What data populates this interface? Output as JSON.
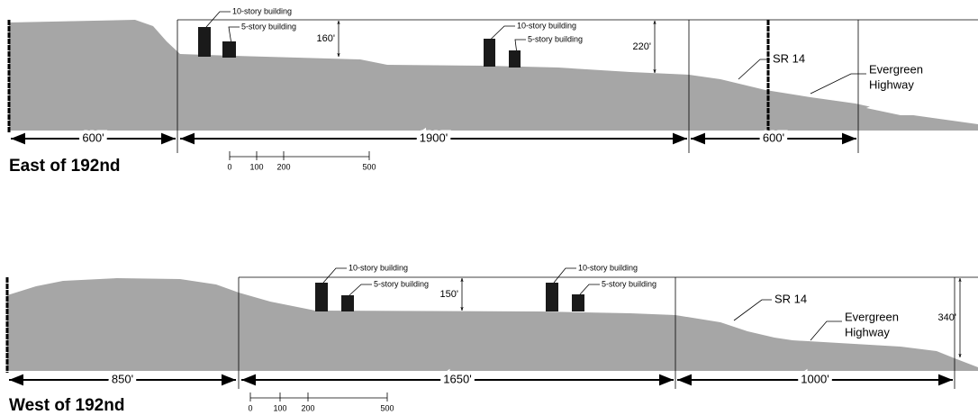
{
  "panels": [
    {
      "title": "East of 192nd",
      "buildings": [
        "10-story building",
        "5-story building",
        "10-story building",
        "5-story building"
      ],
      "heights": [
        "160'",
        "220'"
      ],
      "roads": {
        "sr": "SR 14",
        "highway": [
          "Evergreen",
          "Highway"
        ]
      },
      "segments": [
        "600'",
        "1900'",
        "600'"
      ],
      "scale": [
        "0",
        "100",
        "200",
        "500"
      ]
    },
    {
      "title": "West of 192nd",
      "buildings": [
        "10-story building",
        "5-story building",
        "10-story building",
        "5-story building"
      ],
      "heights": [
        "150'",
        "340'"
      ],
      "roads": {
        "sr": "SR 14",
        "highway": [
          "Evergreen",
          "Highway"
        ]
      },
      "segments": [
        "850'",
        "1650'",
        "1000'"
      ],
      "scale": [
        "0",
        "100",
        "200",
        "500"
      ]
    }
  ]
}
